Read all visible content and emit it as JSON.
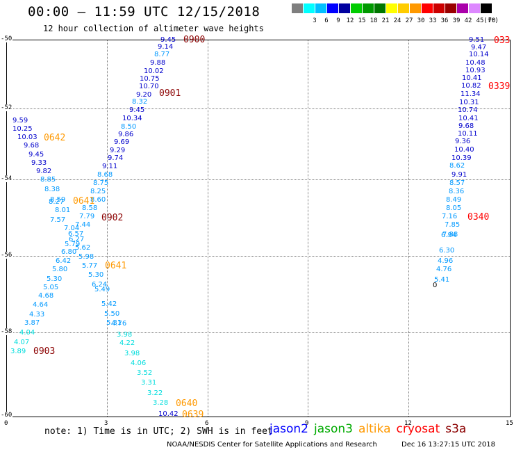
{
  "title": "00:00 – 11:59 UTC 12/15/2018",
  "subtitle": "12 hour collection of altimeter wave heights",
  "scale": {
    "unit": "(ft)",
    "bins": [
      {
        "label": "",
        "color": "#7f7f7f"
      },
      {
        "label": "3",
        "color": "#00ffff"
      },
      {
        "label": "6",
        "color": "#00bfff"
      },
      {
        "label": "9",
        "color": "#0000ff"
      },
      {
        "label": "12",
        "color": "#0000a0"
      },
      {
        "label": "15",
        "color": "#00cc00"
      },
      {
        "label": "18",
        "color": "#009900"
      },
      {
        "label": "21",
        "color": "#007700"
      },
      {
        "label": "24",
        "color": "#ffff00"
      },
      {
        "label": "27",
        "color": "#ffcc00"
      },
      {
        "label": "30",
        "color": "#ff9900"
      },
      {
        "label": "33",
        "color": "#ff0000"
      },
      {
        "label": "36",
        "color": "#cc0000"
      },
      {
        "label": "39",
        "color": "#990000"
      },
      {
        "label": "42",
        "color": "#aa00aa"
      },
      {
        "label": "45",
        "color": "#dd88ff"
      },
      {
        "label": "70",
        "color": "#000000"
      }
    ]
  },
  "axes": {
    "x_ticks": [
      "0",
      "3",
      "6",
      "9",
      "12",
      "15"
    ],
    "y_ticks": [
      "-50",
      "-52",
      "-54",
      "-56",
      "-58",
      "-60"
    ]
  },
  "swh": [
    {
      "v": "9.45",
      "c": "#0000cc"
    },
    {
      "v": "9.14",
      "c": "#0000cc"
    },
    {
      "v": "8.77",
      "c": "#0099ff"
    },
    {
      "v": "9.88",
      "c": "#0000cc"
    },
    {
      "v": "10.02",
      "c": "#0000cc"
    },
    {
      "v": "10.75",
      "c": "#0000cc"
    },
    {
      "v": "10.70",
      "c": "#0000cc"
    },
    {
      "v": "9.20",
      "c": "#0000cc"
    },
    {
      "v": "8.32",
      "c": "#0099ff"
    },
    {
      "v": "9.45",
      "c": "#0000cc"
    },
    {
      "v": "10.34",
      "c": "#0000cc"
    },
    {
      "v": "8.50",
      "c": "#0099ff"
    },
    {
      "v": "9.86",
      "c": "#0000cc"
    },
    {
      "v": "9.69",
      "c": "#0000cc"
    },
    {
      "v": "9.29",
      "c": "#0000cc"
    },
    {
      "v": "9.74",
      "c": "#0000cc"
    },
    {
      "v": "9.11",
      "c": "#0000cc"
    },
    {
      "v": "8.68",
      "c": "#0099ff"
    },
    {
      "v": "8.75",
      "c": "#0099ff"
    },
    {
      "v": "8.25",
      "c": "#0099ff"
    },
    {
      "v": "8.60",
      "c": "#0099ff"
    },
    {
      "v": "8.58",
      "c": "#0099ff"
    },
    {
      "v": "7.79",
      "c": "#0099ff"
    },
    {
      "v": "9.59",
      "c": "#0000cc"
    },
    {
      "v": "10.25",
      "c": "#0000cc"
    },
    {
      "v": "10.03",
      "c": "#0000cc"
    },
    {
      "v": "9.68",
      "c": "#0000cc"
    },
    {
      "v": "9.45",
      "c": "#0000cc"
    },
    {
      "v": "9.33",
      "c": "#0000cc"
    },
    {
      "v": "9.82",
      "c": "#0000cc"
    },
    {
      "v": "8.85",
      "c": "#0099ff"
    },
    {
      "v": "8.38",
      "c": "#0099ff"
    },
    {
      "v": "8.59",
      "c": "#0099ff"
    },
    {
      "v": "8.27",
      "c": "#0099ff"
    },
    {
      "v": "8.01",
      "c": "#0099ff"
    },
    {
      "v": "7.57",
      "c": "#0099ff"
    },
    {
      "v": "7.44",
      "c": "#0099ff"
    },
    {
      "v": "7.04",
      "c": "#0099ff"
    },
    {
      "v": "6.57",
      "c": "#0099ff"
    },
    {
      "v": "6.27",
      "c": "#0099ff"
    },
    {
      "v": "5.79",
      "c": "#0099ff"
    },
    {
      "v": "5.62",
      "c": "#0099ff"
    },
    {
      "v": "6.80",
      "c": "#0099ff"
    },
    {
      "v": "5.98",
      "c": "#0099ff"
    },
    {
      "v": "6.42",
      "c": "#0099ff"
    },
    {
      "v": "5.77",
      "c": "#0099ff"
    },
    {
      "v": "5.80",
      "c": "#0099ff"
    },
    {
      "v": "5.30",
      "c": "#0099ff"
    },
    {
      "v": "5.30",
      "c": "#0099ff"
    },
    {
      "v": "6.24",
      "c": "#0099ff"
    },
    {
      "v": "5.05",
      "c": "#0099ff"
    },
    {
      "v": "5.49",
      "c": "#0099ff"
    },
    {
      "v": "4.68",
      "c": "#0099ff"
    },
    {
      "v": "5.42",
      "c": "#0099ff"
    },
    {
      "v": "4.64",
      "c": "#0099ff"
    },
    {
      "v": "5.50",
      "c": "#0099ff"
    },
    {
      "v": "4.33",
      "c": "#0099ff"
    },
    {
      "v": "5.31",
      "c": "#0099ff"
    },
    {
      "v": "3.87",
      "c": "#0099ff"
    },
    {
      "v": "4.76",
      "c": "#0099ff"
    },
    {
      "v": "4.04",
      "c": "#00dddd"
    },
    {
      "v": "3.98",
      "c": "#00dddd"
    },
    {
      "v": "4.07",
      "c": "#00dddd"
    },
    {
      "v": "4.22",
      "c": "#00dddd"
    },
    {
      "v": "3.89",
      "c": "#00dddd"
    },
    {
      "v": "3.98",
      "c": "#00dddd"
    },
    {
      "v": "4.06",
      "c": "#00dddd"
    },
    {
      "v": "3.52",
      "c": "#00dddd"
    },
    {
      "v": "3.31",
      "c": "#00dddd"
    },
    {
      "v": "3.22",
      "c": "#00dddd"
    },
    {
      "v": "3.28",
      "c": "#00dddd"
    },
    {
      "v": "10.42",
      "c": "#0000cc"
    },
    {
      "v": "9.51",
      "c": "#0000cc"
    },
    {
      "v": "9.47",
      "c": "#0000cc"
    },
    {
      "v": "10.14",
      "c": "#0000cc"
    },
    {
      "v": "10.48",
      "c": "#0000cc"
    },
    {
      "v": "10.93",
      "c": "#0000cc"
    },
    {
      "v": "10.41",
      "c": "#0000cc"
    },
    {
      "v": "10.82",
      "c": "#0000cc"
    },
    {
      "v": "11.34",
      "c": "#0000cc"
    },
    {
      "v": "10.31",
      "c": "#0000cc"
    },
    {
      "v": "10.74",
      "c": "#0000cc"
    },
    {
      "v": "10.41",
      "c": "#0000cc"
    },
    {
      "v": "9.68",
      "c": "#0000cc"
    },
    {
      "v": "10.11",
      "c": "#0000cc"
    },
    {
      "v": "9.36",
      "c": "#0000cc"
    },
    {
      "v": "10.40",
      "c": "#0000cc"
    },
    {
      "v": "10.39",
      "c": "#0000cc"
    },
    {
      "v": "8.62",
      "c": "#0099ff"
    },
    {
      "v": "9.91",
      "c": "#0000cc"
    },
    {
      "v": "8.57",
      "c": "#0099ff"
    },
    {
      "v": "8.36",
      "c": "#0099ff"
    },
    {
      "v": "8.49",
      "c": "#0099ff"
    },
    {
      "v": "8.05",
      "c": "#0099ff"
    },
    {
      "v": "7.16",
      "c": "#0099ff"
    },
    {
      "v": "7.85",
      "c": "#0099ff"
    },
    {
      "v": "7.88",
      "c": "#0099ff"
    },
    {
      "v": "6.94",
      "c": "#0099ff"
    },
    {
      "v": "6.30",
      "c": "#0099ff"
    },
    {
      "v": "4.96",
      "c": "#0099ff"
    },
    {
      "v": "4.76",
      "c": "#0099ff"
    },
    {
      "v": "5.41",
      "c": "#0099ff"
    },
    {
      "v": "0",
      "c": "#000000"
    }
  ],
  "pass_times": [
    {
      "t": "0900",
      "c": "#8b0000"
    },
    {
      "t": "0901",
      "c": "#8b0000"
    },
    {
      "t": "0902",
      "c": "#8b0000"
    },
    {
      "t": "0903",
      "c": "#8b0000"
    },
    {
      "t": "0642",
      "c": "#ff9900"
    },
    {
      "t": "0641",
      "c": "#ff9900"
    },
    {
      "t": "0641",
      "c": "#ff9900"
    },
    {
      "t": "0640",
      "c": "#ff9900"
    },
    {
      "t": "0639",
      "c": "#ff9900"
    },
    {
      "t": "033",
      "c": "#ff0000"
    },
    {
      "t": "0339",
      "c": "#ff0000"
    },
    {
      "t": "0340",
      "c": "#ff0000"
    }
  ],
  "note": "note: 1) Time is in UTC; 2) SWH is in feet",
  "legend": [
    {
      "name": "jason2",
      "color": "#0000ff"
    },
    {
      "name": "jason3",
      "color": "#00aa00"
    },
    {
      "name": "altika",
      "color": "#ff9900"
    },
    {
      "name": "cryosat",
      "color": "#ff0000"
    },
    {
      "name": "s3a",
      "color": "#8b0000"
    }
  ],
  "credit": "NOAA/NESDIS Center for Satellite Applications and Research",
  "timestamp": "Dec 16 13:27:15 UTC 2018"
}
